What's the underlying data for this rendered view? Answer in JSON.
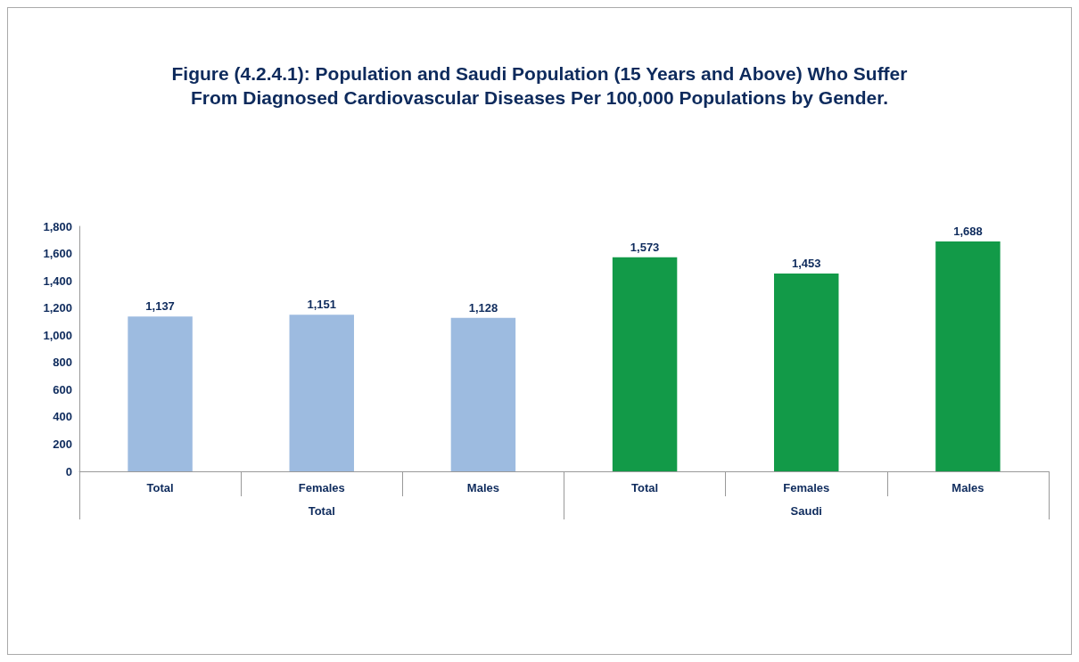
{
  "chart_data": {
    "type": "bar",
    "title": "Figure (4.2.4.1): Population and Saudi Population (15 Years and Above) Who Suffer\nFrom Diagnosed Cardiovascular Diseases Per 100,000 Populations by Gender.",
    "categories": [
      "Total",
      "Females",
      "Males",
      "Total",
      "Females",
      "Males"
    ],
    "values": [
      1137,
      1151,
      1128,
      1573,
      1453,
      1688
    ],
    "colors": [
      "#9dbbe0",
      "#9dbbe0",
      "#9dbbe0",
      "#129a48",
      "#129a48",
      "#129a48"
    ],
    "value_labels": [
      "1,137",
      "1,151",
      "1,128",
      "1,573",
      "1,453",
      "1,688"
    ],
    "annotations": [
      "Total",
      "Saudi"
    ],
    "ylim": [
      0,
      1800
    ],
    "yticks": [
      0,
      200,
      400,
      600,
      800,
      {
        "value": 1000,
        "label": "1,000"
      },
      {
        "value": 1200,
        "label": "1,200"
      },
      {
        "value": 1400,
        "label": "1,400"
      },
      {
        "value": 1600,
        "label": "1,600"
      },
      {
        "value": 1800,
        "label": "1,800"
      }
    ],
    "grid": false
  }
}
